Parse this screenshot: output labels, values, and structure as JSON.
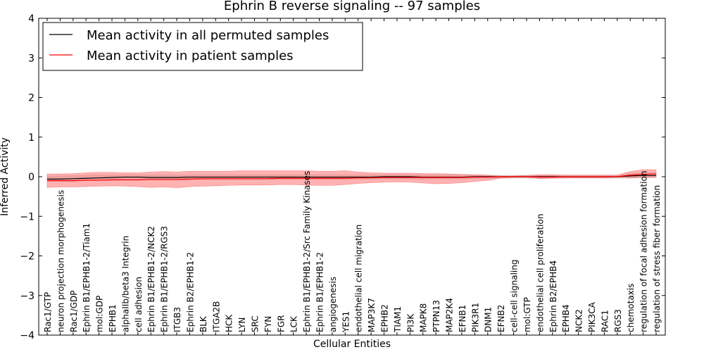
{
  "chart_data": {
    "type": "line",
    "title": "Ephrin B reverse signaling -- 97 samples",
    "xlabel": "Cellular Entities",
    "ylabel": "Inferred Activity",
    "ylim": [
      -4,
      4
    ],
    "yticks": [
      -4,
      -3,
      -2,
      -1,
      0,
      1,
      2,
      3,
      4
    ],
    "legend_placement": "top-left",
    "categories": [
      "Rac1/GTP",
      "neuron projection morphogenesis",
      "Rac1/GDP",
      "Ephrin B1/EPHB1-2/Tiam1",
      "mol:GDP",
      "EPHB1",
      "alphaIIb/beta3 Integrin",
      "cell adhesion",
      "Ephrin B1/EPHB1-2/NCK2",
      "Ephrin B1/EPHB1-2/RGS3",
      "ITGB3",
      "Ephrin B2/EPHB1-2",
      "BLK",
      "ITGA2B",
      "HCK",
      "LYN",
      "SRC",
      "FYN",
      "FGR",
      "LCK",
      "Ephrin B1/EPHB1-2/Src Family Kinases",
      "Ephrin B1/EPHB1-2",
      "angiogenesis",
      "YES1",
      "endothelial cell migration",
      "MAP3K7",
      "EPHB2",
      "TIAM1",
      "PI3K",
      "MAPK8",
      "PTPN13",
      "MAP2K4",
      "EFNB1",
      "PIK3R1",
      "DNM1",
      "EFNB2",
      "cell-cell signaling",
      "mol:GTP",
      "endothelial cell proliferation",
      "Ephrin B2/EPHB4",
      "EPHB4",
      "NCK2",
      "PIK3CA",
      "RAC1",
      "RGS3",
      "chemotaxis",
      "regulation of focal adhesion formation",
      "regulation of stress fiber formation"
    ],
    "series": [
      {
        "name": "Mean activity in all permuted samples",
        "color": "#000000",
        "values": [
          -0.06,
          -0.06,
          -0.05,
          -0.04,
          -0.03,
          -0.02,
          -0.01,
          -0.01,
          -0.02,
          -0.02,
          -0.02,
          -0.01,
          -0.01,
          -0.01,
          -0.01,
          -0.01,
          -0.01,
          -0.01,
          -0.01,
          -0.01,
          -0.01,
          -0.01,
          -0.01,
          -0.01,
          -0.01,
          -0.01,
          0.0,
          0.0,
          0.0,
          -0.01,
          -0.01,
          -0.01,
          -0.01,
          0.0,
          0.0,
          0.0,
          0.0,
          0.0,
          0.0,
          0.0,
          0.0,
          0.0,
          0.0,
          0.0,
          0.0,
          0.02,
          0.03,
          0.03
        ],
        "band": {
          "lower": [
            -0.12,
            -0.12,
            -0.12,
            -0.1,
            -0.09,
            -0.08,
            -0.08,
            -0.08,
            -0.08,
            -0.08,
            -0.08,
            -0.07,
            -0.07,
            -0.07,
            -0.07,
            -0.07,
            -0.07,
            -0.07,
            -0.07,
            -0.07,
            -0.07,
            -0.07,
            -0.07,
            -0.07,
            -0.06,
            -0.06,
            -0.05,
            -0.05,
            -0.05,
            -0.06,
            -0.06,
            -0.06,
            -0.05,
            -0.05,
            -0.04,
            -0.04,
            -0.04,
            -0.04,
            -0.04,
            -0.04,
            -0.04,
            -0.04,
            -0.04,
            -0.04,
            -0.04,
            -0.04,
            -0.02,
            -0.02
          ],
          "upper": [
            0.02,
            0.02,
            0.03,
            0.04,
            0.05,
            0.05,
            0.05,
            0.05,
            0.05,
            0.05,
            0.05,
            0.05,
            0.05,
            0.05,
            0.05,
            0.05,
            0.05,
            0.05,
            0.05,
            0.05,
            0.05,
            0.05,
            0.05,
            0.05,
            0.05,
            0.05,
            0.05,
            0.05,
            0.05,
            0.05,
            0.05,
            0.05,
            0.05,
            0.05,
            0.04,
            0.04,
            0.04,
            0.04,
            0.04,
            0.04,
            0.04,
            0.04,
            0.04,
            0.04,
            0.04,
            0.08,
            0.1,
            0.1
          ]
        }
      },
      {
        "name": "Mean activity in patient samples",
        "color": "#ff0000",
        "values": [
          -0.1,
          -0.1,
          -0.1,
          -0.09,
          -0.09,
          -0.08,
          -0.08,
          -0.08,
          -0.07,
          -0.07,
          -0.07,
          -0.06,
          -0.05,
          -0.05,
          -0.05,
          -0.05,
          -0.05,
          -0.05,
          -0.04,
          -0.04,
          -0.04,
          -0.04,
          -0.04,
          -0.04,
          -0.03,
          -0.03,
          -0.02,
          -0.02,
          -0.02,
          -0.02,
          -0.02,
          -0.02,
          -0.02,
          -0.01,
          -0.01,
          0.0,
          0.0,
          0.0,
          -0.01,
          -0.01,
          0.0,
          0.0,
          0.0,
          0.0,
          0.0,
          0.04,
          0.06,
          0.07
        ],
        "band": {
          "lower": [
            -0.27,
            -0.26,
            -0.26,
            -0.25,
            -0.24,
            -0.23,
            -0.24,
            -0.25,
            -0.27,
            -0.26,
            -0.28,
            -0.25,
            -0.24,
            -0.23,
            -0.22,
            -0.21,
            -0.21,
            -0.21,
            -0.2,
            -0.2,
            -0.21,
            -0.22,
            -0.22,
            -0.2,
            -0.17,
            -0.15,
            -0.14,
            -0.13,
            -0.14,
            -0.16,
            -0.18,
            -0.17,
            -0.15,
            -0.12,
            -0.09,
            -0.04,
            -0.02,
            -0.02,
            -0.05,
            -0.04,
            -0.03,
            -0.03,
            -0.03,
            -0.03,
            -0.02,
            -0.03,
            -0.02,
            -0.02
          ],
          "upper": [
            0.07,
            0.07,
            0.08,
            0.1,
            0.11,
            0.11,
            0.1,
            0.1,
            0.12,
            0.13,
            0.12,
            0.14,
            0.14,
            0.14,
            0.14,
            0.15,
            0.15,
            0.15,
            0.15,
            0.15,
            0.15,
            0.14,
            0.14,
            0.15,
            0.12,
            0.1,
            0.09,
            0.09,
            0.09,
            0.08,
            0.08,
            0.07,
            0.06,
            0.05,
            0.04,
            0.02,
            0.02,
            0.03,
            0.05,
            0.05,
            0.04,
            0.04,
            0.04,
            0.04,
            0.04,
            0.13,
            0.18,
            0.18
          ]
        }
      }
    ]
  }
}
